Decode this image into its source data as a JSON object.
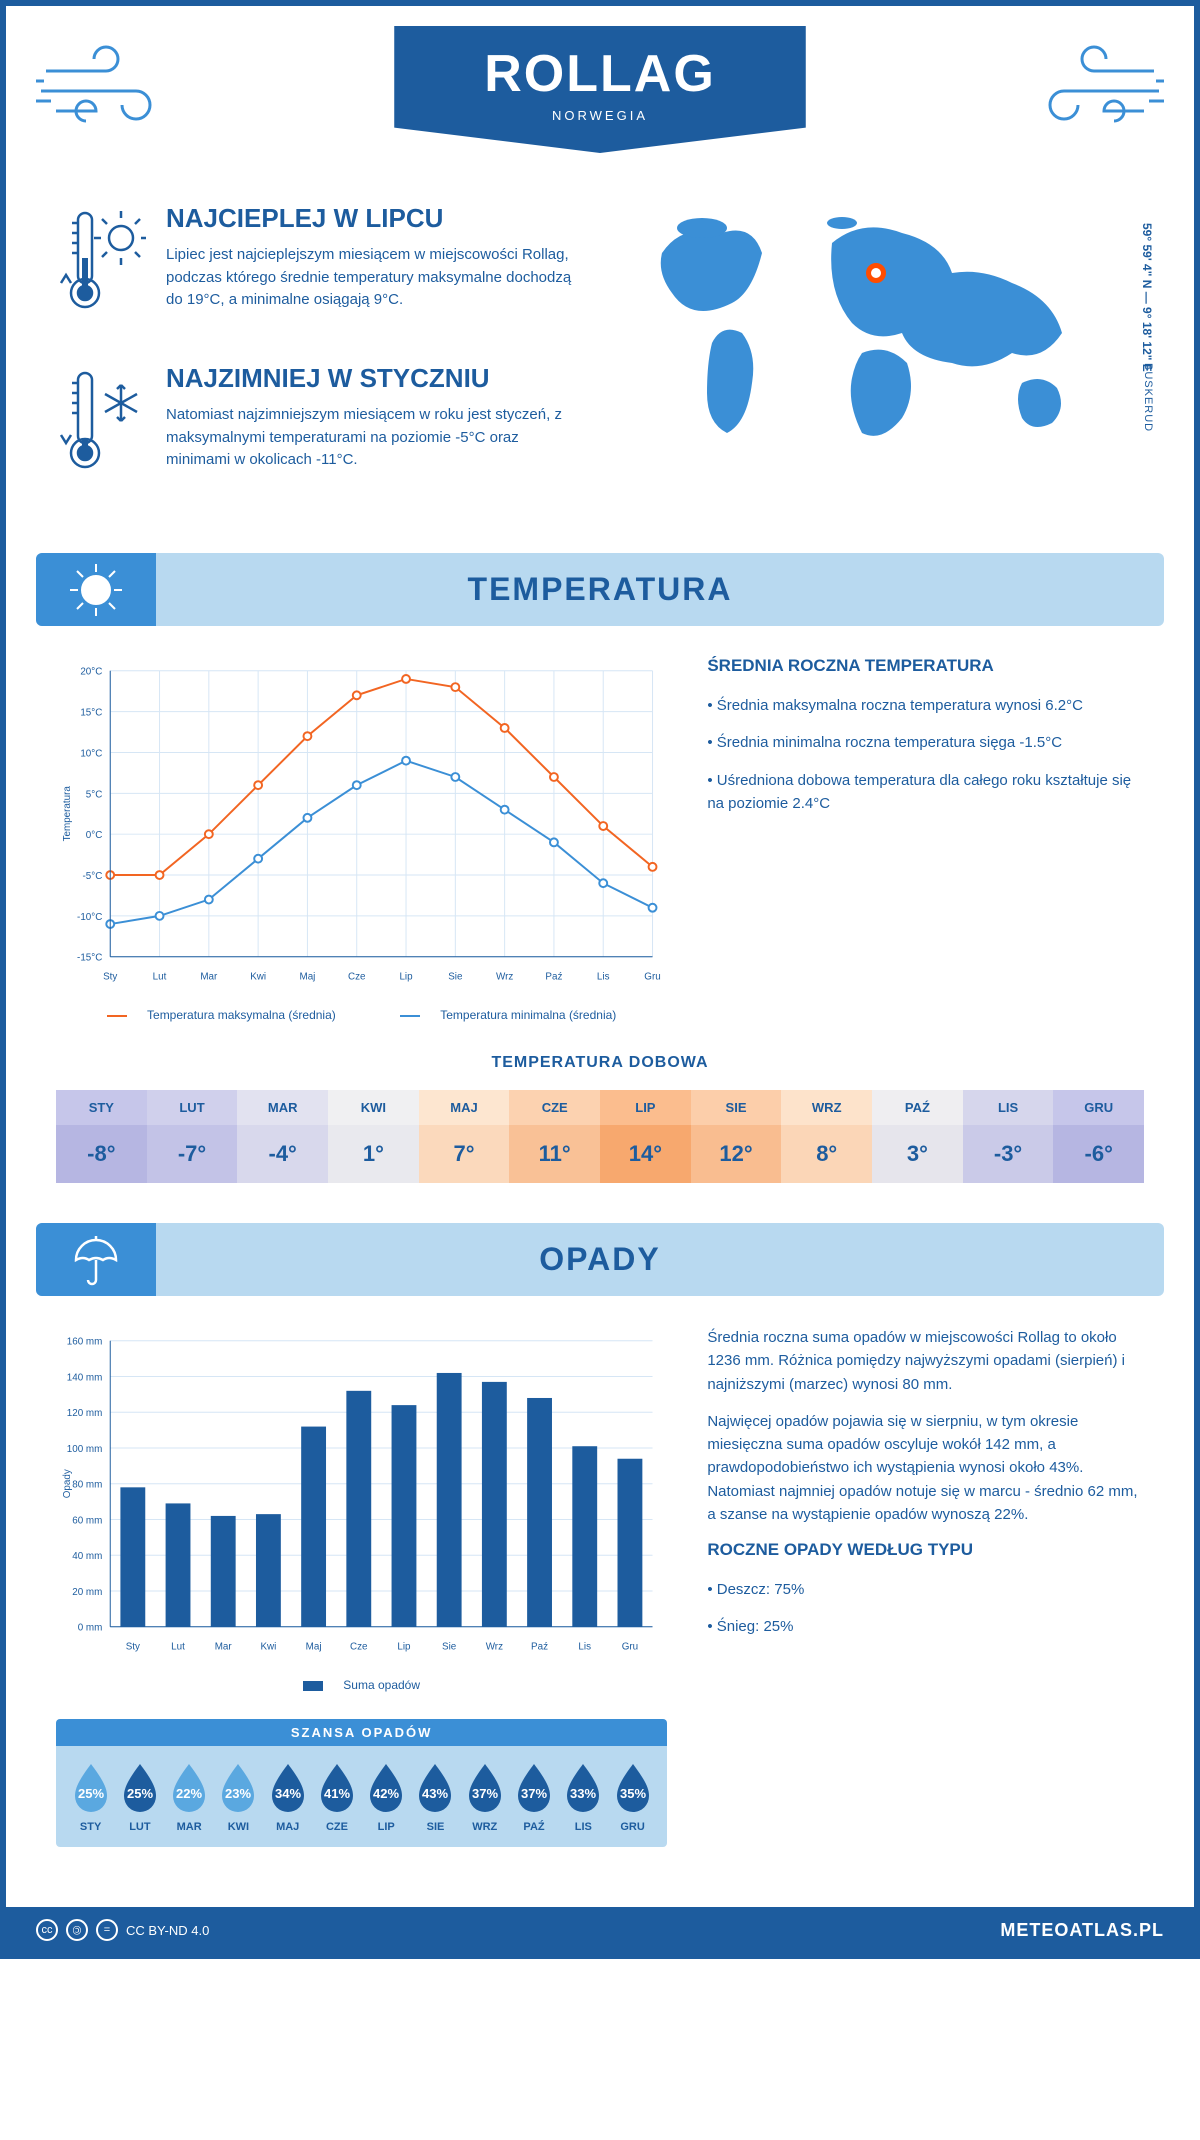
{
  "header": {
    "city": "ROLLAG",
    "country": "NORWEGIA"
  },
  "location": {
    "coords": "59° 59' 4\" N — 9° 18' 12\" E",
    "region": "BUSKERUD"
  },
  "facts": {
    "hot": {
      "title": "NAJCIEPLEJ W LIPCU",
      "text": "Lipiec jest najcieplejszym miesiącem w miejscowości Rollag, podczas którego średnie temperatury maksymalne dochodzą do 19°C, a minimalne osiągają 9°C."
    },
    "cold": {
      "title": "NAJZIMNIEJ W STYCZNIU",
      "text": "Natomiast najzimniejszym miesiącem w roku jest styczeń, z maksymalnymi temperaturami na poziomie -5°C oraz minimami w okolicach -11°C."
    }
  },
  "sections": {
    "temperature": "TEMPERATURA",
    "precip": "OPADY"
  },
  "temp_chart": {
    "type": "line",
    "months": [
      "Sty",
      "Lut",
      "Mar",
      "Kwi",
      "Maj",
      "Cze",
      "Lip",
      "Sie",
      "Wrz",
      "Paź",
      "Lis",
      "Gru"
    ],
    "max_series": {
      "label": "Temperatura maksymalna (średnia)",
      "color": "#f26522",
      "values": [
        -5,
        -5,
        0,
        6,
        12,
        17,
        19,
        18,
        13,
        7,
        1,
        -4
      ]
    },
    "min_series": {
      "label": "Temperatura minimalna (średnia)",
      "color": "#3b8fd6",
      "values": [
        -11,
        -10,
        -8,
        -3,
        2,
        6,
        9,
        7,
        3,
        -1,
        -6,
        -9
      ]
    },
    "ylim": [
      -15,
      20
    ],
    "ytick_step": 5,
    "ylabel": "Temperatura",
    "grid_color": "#d6e6f5",
    "axis_color": "#1d5c9e",
    "label_fontsize": 10,
    "line_width": 2,
    "marker_size": 4,
    "background_color": "#ffffff"
  },
  "annual_temp": {
    "title": "ŚREDNIA ROCZNA TEMPERATURA",
    "items": [
      "Średnia maksymalna roczna temperatura wynosi 6.2°C",
      "Średnia minimalna roczna temperatura sięga -1.5°C",
      "Uśredniona dobowa temperatura dla całego roku kształtuje się na poziomie 2.4°C"
    ]
  },
  "daily_temp": {
    "title": "TEMPERATURA DOBOWA",
    "months": [
      "STY",
      "LUT",
      "MAR",
      "KWI",
      "MAJ",
      "CZE",
      "LIP",
      "SIE",
      "WRZ",
      "PAŹ",
      "LIS",
      "GRU"
    ],
    "values": [
      "-8°",
      "-7°",
      "-4°",
      "1°",
      "7°",
      "11°",
      "14°",
      "12°",
      "8°",
      "3°",
      "-3°",
      "-6°"
    ],
    "header_colors": [
      "#c6c6ea",
      "#d0d0ec",
      "#e2e2f0",
      "#f0f0f2",
      "#fde6d0",
      "#fcd2b0",
      "#fbbd8e",
      "#fcceaa",
      "#fde3cb",
      "#efeef1",
      "#d6d6ec",
      "#c6c6ea"
    ],
    "value_colors": [
      "#b6b6e2",
      "#c3c3e7",
      "#d8d8ec",
      "#e9e9ee",
      "#fbd9bc",
      "#f9c196",
      "#f7a86e",
      "#f9bd90",
      "#fbd6b7",
      "#e6e5ec",
      "#cacae8",
      "#b6b6e2"
    ]
  },
  "precip_chart": {
    "type": "bar",
    "months": [
      "Sty",
      "Lut",
      "Mar",
      "Kwi",
      "Maj",
      "Cze",
      "Lip",
      "Sie",
      "Wrz",
      "Paź",
      "Lis",
      "Gru"
    ],
    "values": [
      78,
      69,
      62,
      63,
      112,
      132,
      124,
      142,
      137,
      128,
      101,
      94
    ],
    "label": "Suma opadów",
    "bar_color": "#1d5c9e",
    "ylim": [
      0,
      160
    ],
    "ytick_step": 20,
    "ylabel": "Opady",
    "grid_color": "#d6e6f5",
    "axis_color": "#1d5c9e",
    "bar_width": 0.55,
    "label_fontsize": 10,
    "background_color": "#ffffff"
  },
  "precip_text": {
    "p1": "Średnia roczna suma opadów w miejscowości Rollag to około 1236 mm. Różnica pomiędzy najwyższymi opadami (sierpień) i najniższymi (marzec) wynosi 80 mm.",
    "p2": "Najwięcej opadów pojawia się w sierpniu, w tym okresie miesięczna suma opadów oscyluje wokół 142 mm, a prawdopodobieństwo ich wystąpienia wynosi około 43%. Natomiast najmniej opadów notuje się w marcu - średnio 62 mm, a szanse na wystąpienie opadów wynoszą 22%.",
    "type_title": "ROCZNE OPADY WEDŁUG TYPU",
    "types": [
      "Deszcz: 75%",
      "Śnieg: 25%"
    ]
  },
  "chance": {
    "title": "SZANSA OPADÓW",
    "months": [
      "STY",
      "LUT",
      "MAR",
      "KWI",
      "MAJ",
      "CZE",
      "LIP",
      "SIE",
      "WRZ",
      "PAŹ",
      "LIS",
      "GRU"
    ],
    "values": [
      "25%",
      "25%",
      "22%",
      "23%",
      "34%",
      "41%",
      "42%",
      "43%",
      "37%",
      "37%",
      "33%",
      "35%"
    ],
    "colors": [
      "#5aa8e0",
      "#1d5c9e",
      "#5aa8e0",
      "#5aa8e0",
      "#1d5c9e",
      "#1d5c9e",
      "#1d5c9e",
      "#1d5c9e",
      "#1d5c9e",
      "#1d5c9e",
      "#1d5c9e",
      "#1d5c9e"
    ]
  },
  "footer": {
    "license": "CC BY-ND 4.0",
    "site": "METEOATLAS.PL"
  }
}
